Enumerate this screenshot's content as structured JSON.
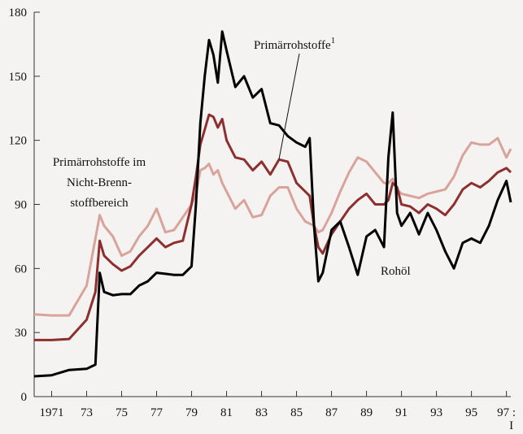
{
  "chart_data": {
    "type": "line",
    "x": [
      1970,
      1971,
      1972,
      1973,
      1973.5,
      1973.75,
      1974,
      1974.5,
      1975,
      1975.5,
      1976,
      1976.5,
      1977,
      1977.5,
      1978,
      1978.5,
      1979,
      1979.25,
      1979.5,
      1979.75,
      1980,
      1980.25,
      1980.5,
      1980.75,
      1981,
      1981.5,
      1982,
      1982.5,
      1983,
      1983.5,
      1984,
      1984.5,
      1985,
      1985.5,
      1985.75,
      1986,
      1986.25,
      1986.5,
      1987,
      1987.5,
      1988,
      1988.5,
      1989,
      1989.5,
      1990,
      1990.25,
      1990.5,
      1990.75,
      1991,
      1991.5,
      1992,
      1992.5,
      1993,
      1993.5,
      1994,
      1994.5,
      1995,
      1995.5,
      1996,
      1996.5,
      1997,
      1997.25
    ],
    "series": [
      {
        "color": "#d9a39b",
        "values": [
          38.5,
          38,
          38,
          52,
          74,
          85,
          80,
          75,
          66,
          68,
          75,
          80,
          88,
          77,
          78,
          84,
          90,
          95,
          106,
          107,
          109,
          104,
          106,
          100,
          96,
          88,
          92,
          84,
          85,
          94,
          98,
          98,
          88,
          82,
          81,
          80,
          77,
          78,
          86,
          96,
          105,
          112,
          110,
          105,
          100,
          100,
          102,
          97,
          95,
          94,
          93,
          95,
          96,
          97,
          103,
          113,
          119,
          118,
          118,
          121,
          112,
          116
        ]
      },
      {
        "color": "#8e2f2f",
        "values": [
          26.5,
          26.5,
          27,
          36,
          49,
          73,
          66,
          62,
          59,
          61,
          66,
          70,
          74,
          70,
          72,
          73,
          90,
          103,
          118,
          125,
          132,
          131,
          126,
          130,
          120,
          112,
          111,
          106,
          110,
          104,
          111,
          110,
          100,
          96,
          94,
          80,
          70,
          67,
          76,
          82,
          88,
          92,
          95,
          90,
          90,
          92,
          100,
          98,
          90,
          89,
          86,
          90,
          88,
          85,
          90,
          97,
          100,
          98,
          101,
          105,
          107,
          105
        ]
      },
      {
        "color": "#000000",
        "values": [
          9.5,
          10,
          12.5,
          13,
          15,
          58,
          49,
          47.5,
          48,
          48,
          52,
          54,
          58,
          57.5,
          57,
          57,
          61,
          90,
          128,
          150,
          167,
          160,
          147,
          171,
          162,
          145,
          150,
          140,
          144,
          128,
          127,
          122,
          119,
          117,
          121,
          80,
          54,
          58,
          78,
          82,
          70,
          57,
          75,
          78,
          70,
          112,
          133,
          86,
          80,
          86,
          76,
          86,
          78,
          68,
          60,
          72,
          74,
          72,
          80,
          92,
          101,
          91
        ]
      }
    ],
    "xlim": [
      1970,
      1997.25
    ],
    "xticks": [
      {
        "value": 1971,
        "label": "1971"
      },
      {
        "value": 1973,
        "label": "73"
      },
      {
        "value": 1975,
        "label": "75"
      },
      {
        "value": 1977,
        "label": "77"
      },
      {
        "value": 1979,
        "label": "79"
      },
      {
        "value": 1981,
        "label": "81"
      },
      {
        "value": 1983,
        "label": "83"
      },
      {
        "value": 1985,
        "label": "85"
      },
      {
        "value": 1987,
        "label": "87"
      },
      {
        "value": 1989,
        "label": "89"
      },
      {
        "value": 1991,
        "label": "91"
      },
      {
        "value": 1993,
        "label": "93"
      },
      {
        "value": 1995,
        "label": "95"
      },
      {
        "value": 1997,
        "label": "97 :"
      }
    ],
    "quarter_label": "I",
    "ylim": [
      0,
      180
    ],
    "yticks": [
      0,
      30,
      60,
      90,
      120,
      150,
      180
    ],
    "annotations": [
      {
        "text": "Primärrohstoffe",
        "sup": "1"
      },
      {
        "lines": [
          "Primärrohstoffe im",
          "Nicht-Brenn-",
          "stoffbereich"
        ]
      },
      {
        "text": "Rohöl"
      }
    ]
  }
}
